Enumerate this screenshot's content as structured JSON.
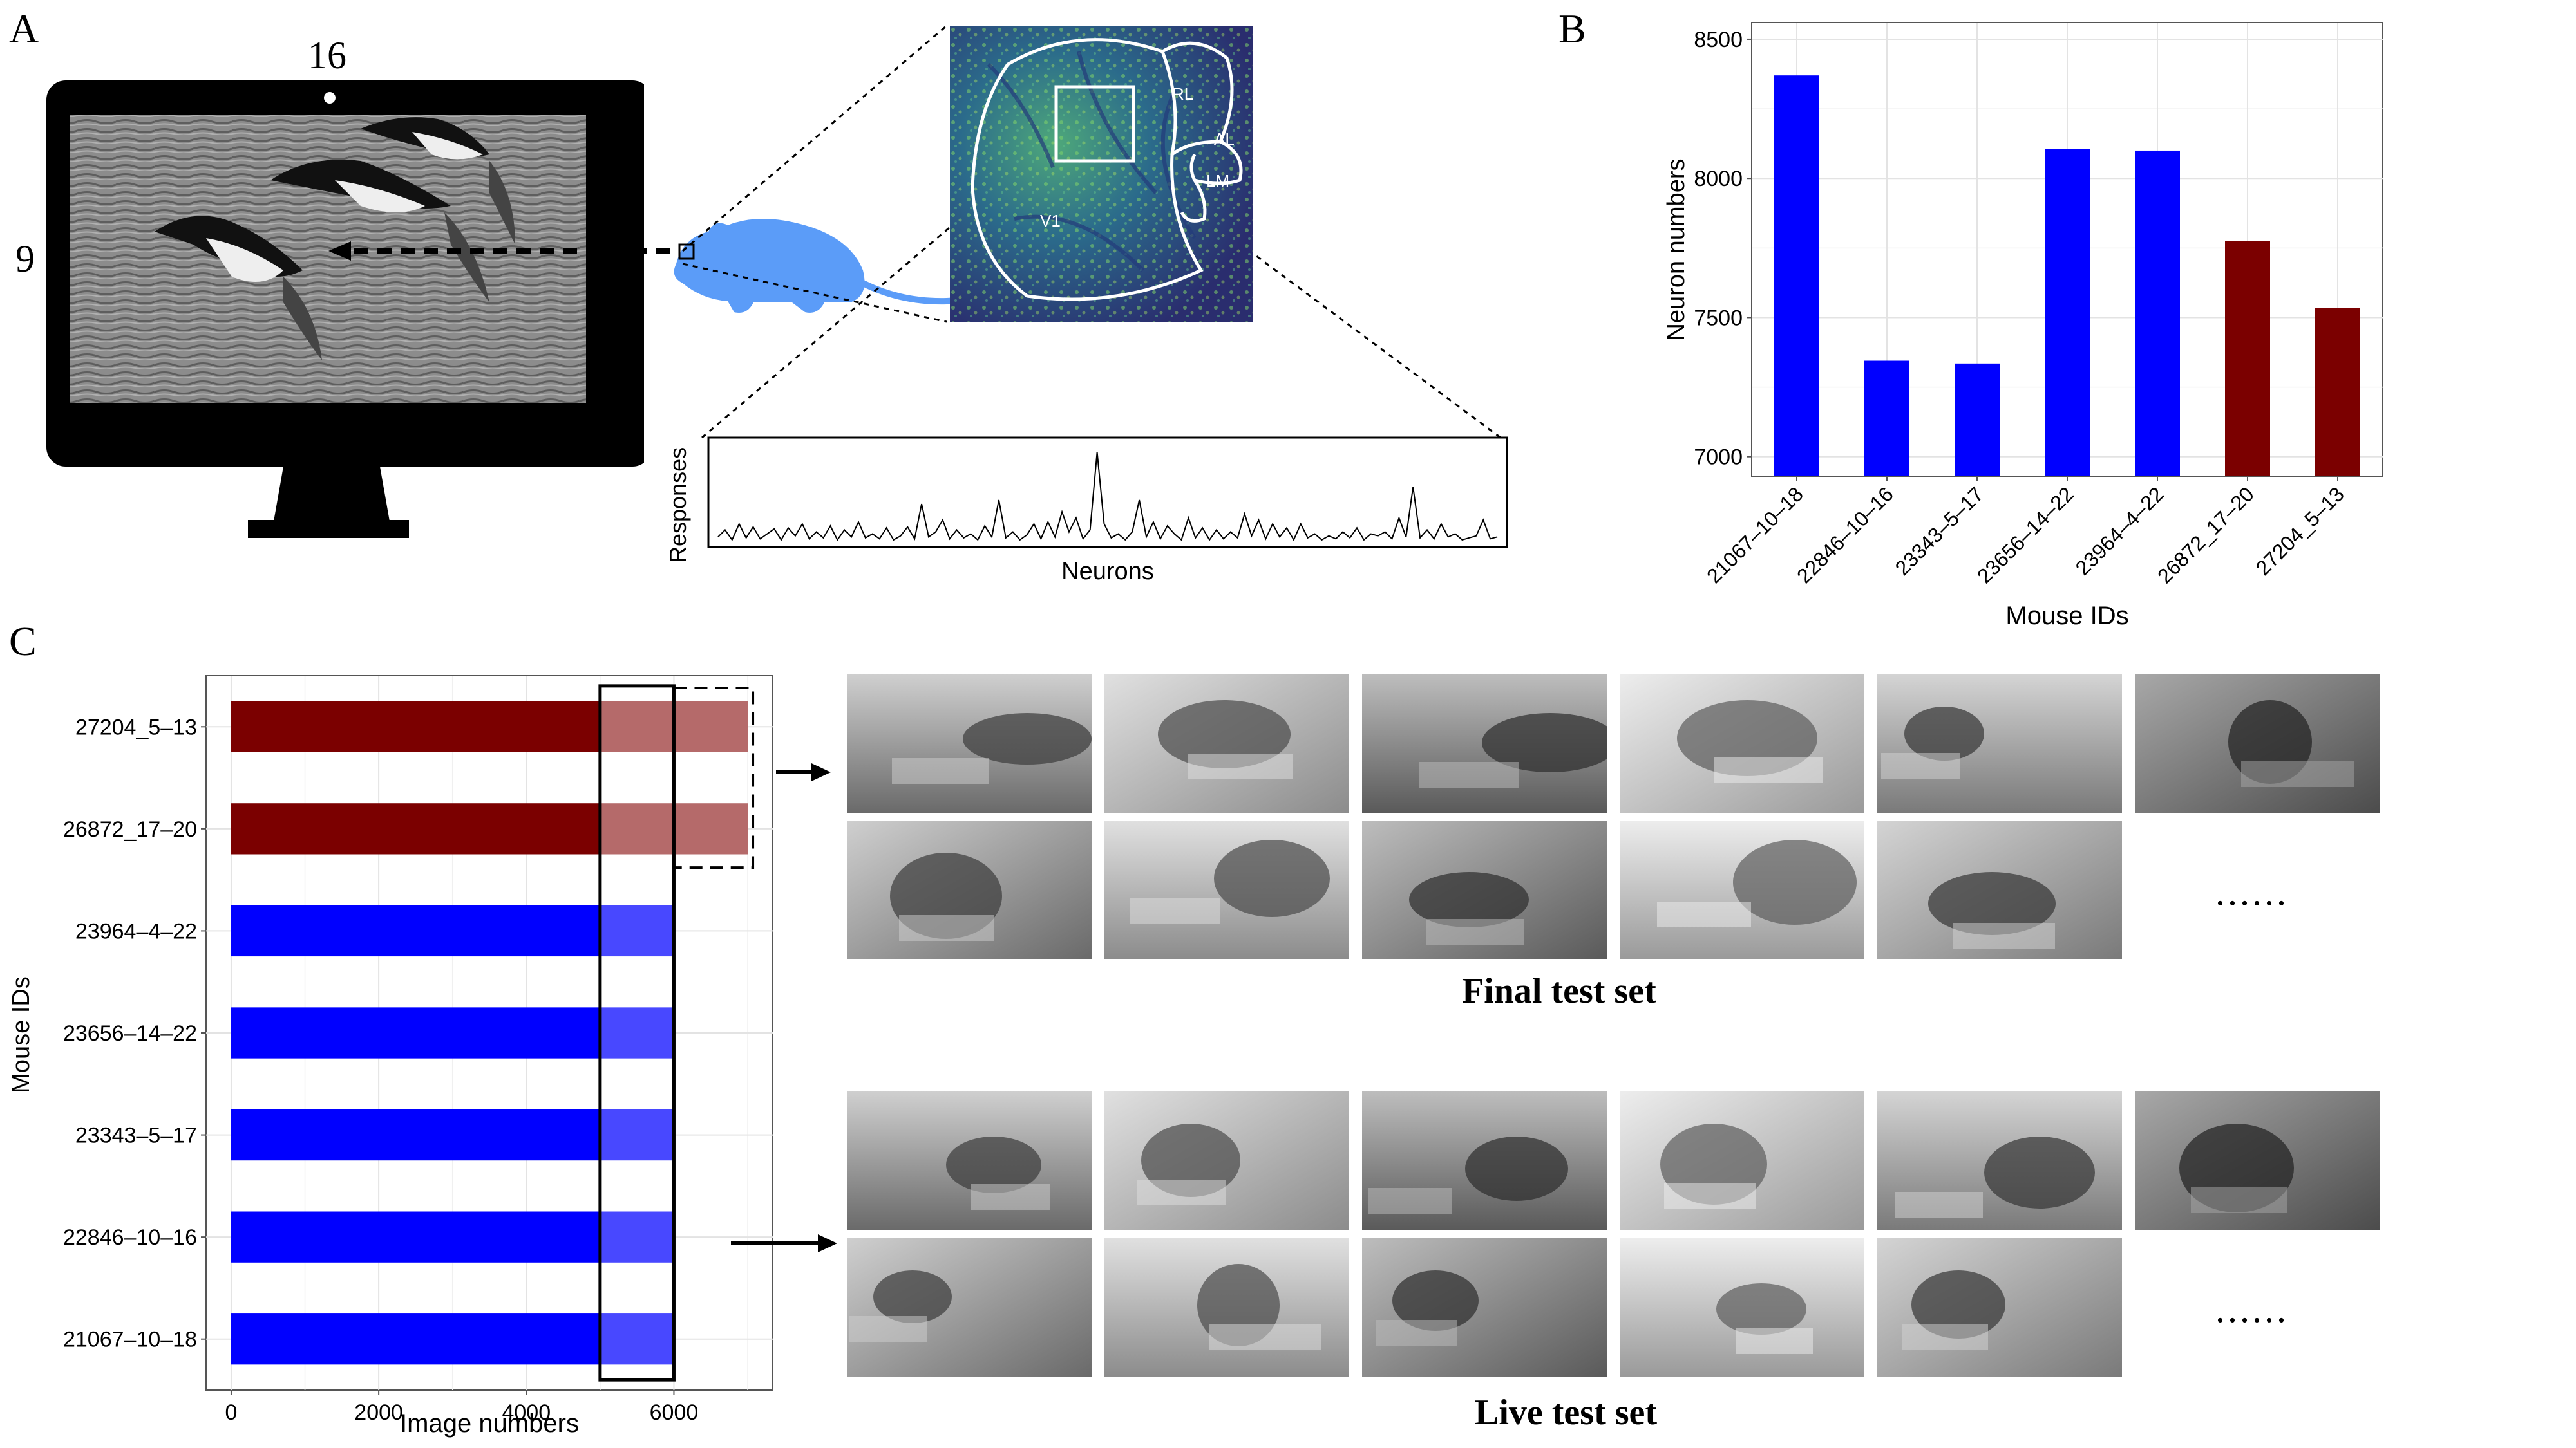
{
  "panels": {
    "a": "A",
    "b": "B",
    "c": "C"
  },
  "monitor": {
    "top_number": "16",
    "left_number": "9"
  },
  "brain": {
    "areas": [
      "RL",
      "AL",
      "LM",
      "V1"
    ]
  },
  "response_plot": {
    "ylabel": "Responses",
    "xlabel": "Neurons",
    "values": [
      0.05,
      0.12,
      0.02,
      0.18,
      0.04,
      0.15,
      0.03,
      0.08,
      0.13,
      0.02,
      0.14,
      0.06,
      0.18,
      0.03,
      0.1,
      0.04,
      0.16,
      0.02,
      0.12,
      0.05,
      0.2,
      0.04,
      0.08,
      0.03,
      0.14,
      0.02,
      0.06,
      0.15,
      0.03,
      0.38,
      0.05,
      0.1,
      0.22,
      0.03,
      0.12,
      0.04,
      0.08,
      0.02,
      0.16,
      0.05,
      0.42,
      0.04,
      0.1,
      0.02,
      0.07,
      0.18,
      0.03,
      0.2,
      0.05,
      0.3,
      0.1,
      0.24,
      0.03,
      0.12,
      0.9,
      0.18,
      0.04,
      0.08,
      0.02,
      0.1,
      0.42,
      0.05,
      0.2,
      0.03,
      0.16,
      0.08,
      0.02,
      0.24,
      0.04,
      0.14,
      0.02,
      0.12,
      0.03,
      0.1,
      0.04,
      0.28,
      0.06,
      0.22,
      0.03,
      0.18,
      0.05,
      0.14,
      0.02,
      0.18,
      0.04,
      0.08,
      0.02,
      0.06,
      0.03,
      0.1,
      0.04,
      0.14,
      0.02,
      0.08,
      0.06,
      0.1,
      0.03,
      0.24,
      0.05,
      0.55,
      0.04,
      0.12,
      0.03,
      0.18,
      0.05,
      0.08,
      0.02,
      0.04,
      0.06,
      0.22,
      0.03,
      0.05
    ]
  },
  "final_test_caption": "Final test set",
  "live_test_caption": "Live test set",
  "ellipsis": "......",
  "chart_data": [
    {
      "type": "bar",
      "orientation": "vertical",
      "categories": [
        "21067–10–18",
        "22846–10–16",
        "23343–5–17",
        "23656–14–22",
        "23964–4–22",
        "26872_17–20",
        "27204_5–13"
      ],
      "values": [
        8370,
        7345,
        7335,
        8105,
        8100,
        7775,
        7535
      ],
      "colors": [
        "#0000ff",
        "#0000ff",
        "#0000ff",
        "#0000ff",
        "#0000ff",
        "#7b0000",
        "#7b0000"
      ],
      "xlabel": "Mouse IDs",
      "ylabel": "Neuron numbers",
      "ylim": [
        6930,
        8560
      ],
      "yticks": [
        "7000",
        "7500",
        "8000",
        "8500"
      ],
      "grid": true
    },
    {
      "type": "bar",
      "orientation": "horizontal",
      "categories": [
        "27204_5–13",
        "26872_17–20",
        "23964–4–22",
        "23656–14–22",
        "23343–5–17",
        "22846–10–16",
        "21067–10–18"
      ],
      "train_values": [
        5000,
        5000,
        5000,
        5000,
        5000,
        5000,
        5000
      ],
      "test_values": [
        7000,
        7000,
        6000,
        6000,
        5980,
        6000,
        6000
      ],
      "colors": [
        "#7b0000",
        "#7b0000",
        "#0000ff",
        "#0000ff",
        "#0000ff",
        "#0000ff",
        "#0000ff"
      ],
      "xlabel": "Image numbers",
      "ylabel": "Mouse IDs",
      "xlim": [
        -340,
        7340
      ],
      "xticks": [
        "0",
        "2000",
        "4000",
        "6000"
      ],
      "grid": true
    }
  ]
}
